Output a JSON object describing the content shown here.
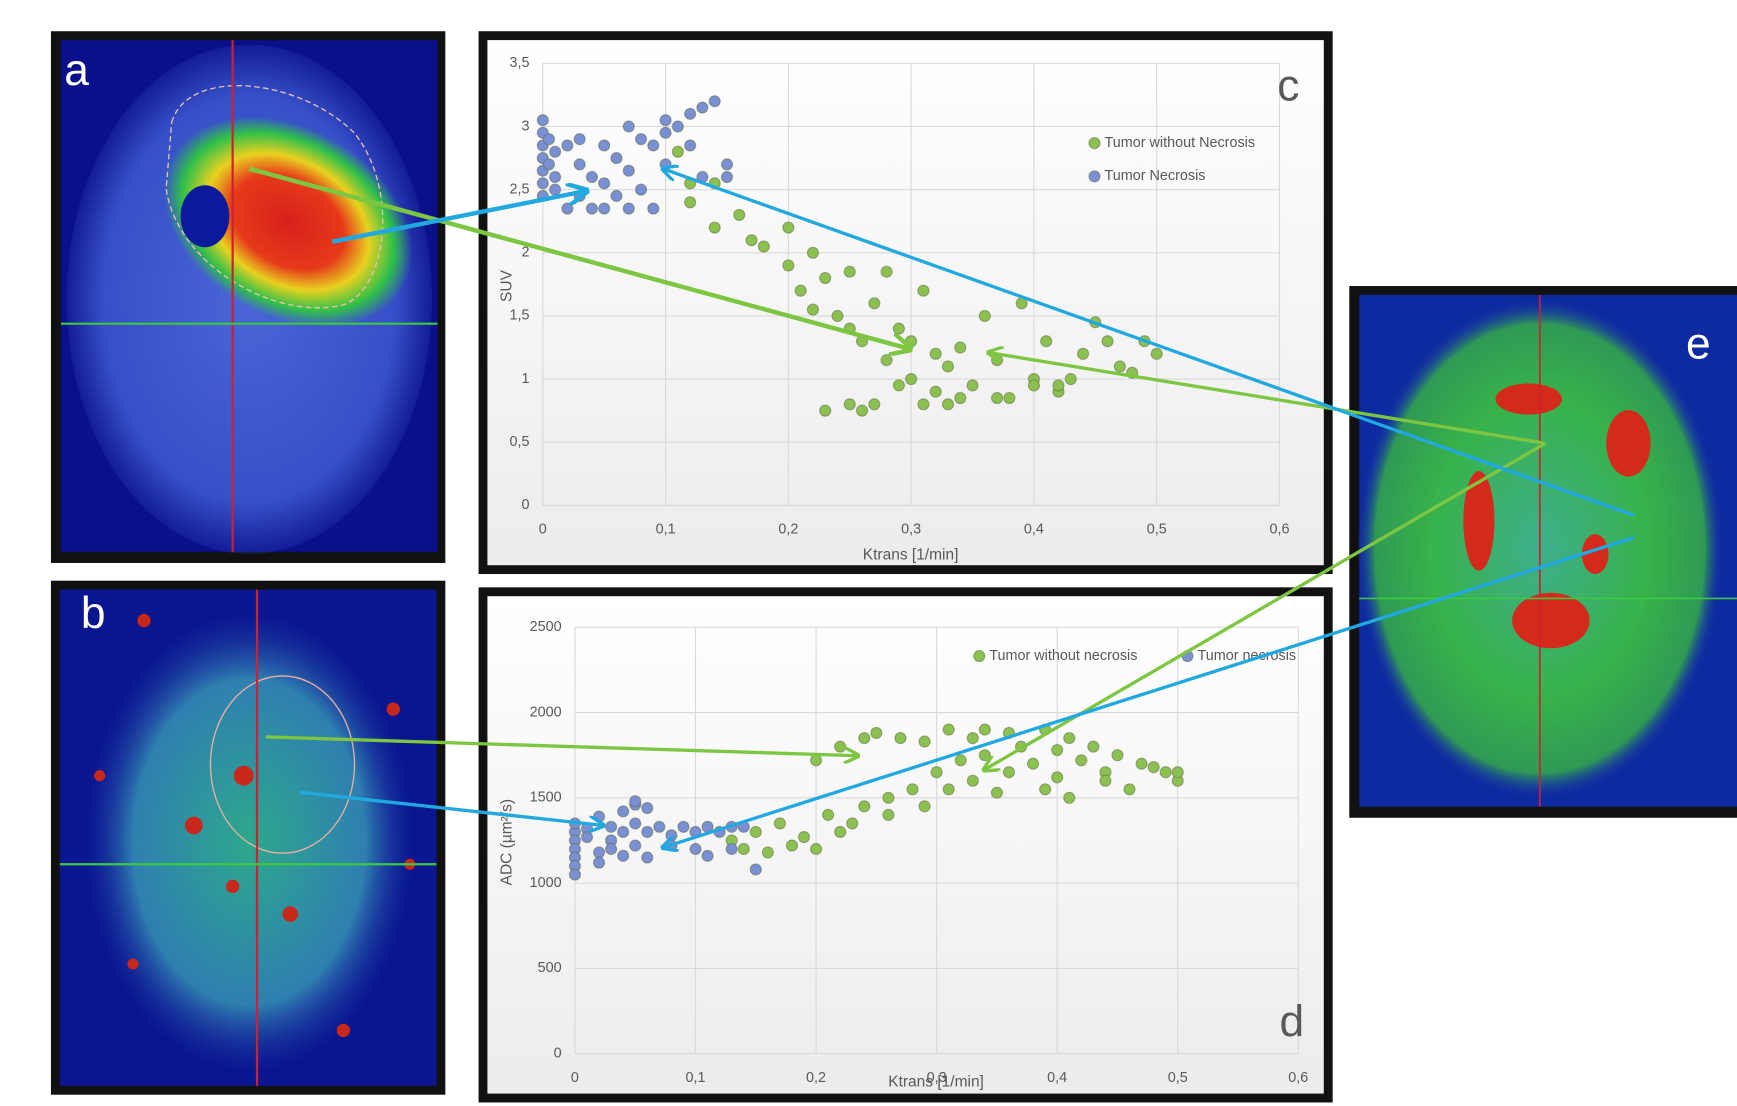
{
  "panel_labels": [
    "a",
    "b",
    "e"
  ],
  "chart_data": [
    {
      "type": "scatter",
      "panel_label": "c",
      "x_label": "Ktrans [1/min]",
      "y_label": "SUV",
      "xlim": [
        0,
        0.6
      ],
      "ylim": [
        0,
        3.5
      ],
      "grid": true,
      "legend": "top-right",
      "xticks": [
        0,
        {
          "value": 0.1,
          "label": "0,1"
        },
        {
          "value": 0.2,
          "label": "0,2"
        },
        {
          "value": 0.3,
          "label": "0,3"
        },
        {
          "value": 0.4,
          "label": "0,4"
        },
        {
          "value": 0.5,
          "label": "0,5"
        },
        {
          "value": 0.6,
          "label": "0,6"
        }
      ],
      "yticks": [
        0,
        {
          "value": 0.5,
          "label": "0,5"
        },
        1,
        {
          "value": 1.5,
          "label": "1,5"
        },
        2,
        {
          "value": 2.5,
          "label": "2,5"
        },
        3,
        {
          "value": 3.5,
          "label": "3,5"
        }
      ],
      "series": [
        {
          "name": "Tumor without Necrosis",
          "color": "#8cc152",
          "x": [
            0.11,
            0.12,
            0.12,
            0.14,
            0.14,
            0.16,
            0.17,
            0.18,
            0.2,
            0.2,
            0.21,
            0.22,
            0.22,
            0.23,
            0.24,
            0.25,
            0.25,
            0.26,
            0.27,
            0.28,
            0.28,
            0.29,
            0.3,
            0.3,
            0.31,
            0.32,
            0.32,
            0.33,
            0.34,
            0.35,
            0.36,
            0.37,
            0.38,
            0.39,
            0.4,
            0.41,
            0.42,
            0.43,
            0.44,
            0.45,
            0.46,
            0.47,
            0.48,
            0.49,
            0.5,
            0.23,
            0.25,
            0.27,
            0.29,
            0.31,
            0.34,
            0.37,
            0.4,
            0.42,
            0.33,
            0.26
          ],
          "values": [
            2.8,
            2.55,
            2.4,
            2.55,
            2.2,
            2.3,
            2.1,
            2.05,
            2.2,
            1.9,
            1.7,
            2.0,
            1.55,
            1.8,
            1.5,
            1.85,
            1.4,
            1.3,
            1.6,
            1.85,
            1.15,
            1.4,
            1.3,
            1.0,
            1.7,
            1.2,
            0.9,
            1.1,
            1.25,
            0.95,
            1.5,
            1.15,
            0.85,
            1.6,
            1.0,
            1.3,
            0.9,
            1.0,
            1.2,
            1.45,
            1.3,
            1.1,
            1.05,
            1.3,
            1.2,
            0.75,
            0.8,
            0.8,
            0.95,
            0.8,
            0.85,
            0.85,
            0.95,
            0.95,
            0.8,
            0.75
          ]
        },
        {
          "name": "Tumor Necrosis",
          "color": "#7b8fd4",
          "x": [
            0,
            0,
            0,
            0,
            0,
            0,
            0,
            0.005,
            0.005,
            0.01,
            0.01,
            0.01,
            0.02,
            0.02,
            0.03,
            0.03,
            0.03,
            0.04,
            0.04,
            0.05,
            0.05,
            0.05,
            0.06,
            0.06,
            0.07,
            0.07,
            0.07,
            0.08,
            0.08,
            0.09,
            0.09,
            0.1,
            0.1,
            0.1,
            0.11,
            0.12,
            0.13,
            0.14,
            0.12,
            0.15,
            0.15,
            0.13
          ],
          "values": [
            3.05,
            2.95,
            2.85,
            2.75,
            2.65,
            2.55,
            2.45,
            2.9,
            2.7,
            2.8,
            2.6,
            2.5,
            2.85,
            2.35,
            2.9,
            2.7,
            2.45,
            2.6,
            2.35,
            2.85,
            2.55,
            2.35,
            2.75,
            2.45,
            3.0,
            2.65,
            2.35,
            2.9,
            2.5,
            2.85,
            2.35,
            3.05,
            2.95,
            2.7,
            3.0,
            3.1,
            3.15,
            3.2,
            2.85,
            2.7,
            2.6,
            2.6
          ]
        }
      ]
    },
    {
      "type": "scatter",
      "panel_label": "d",
      "x_label": "Ktrans [1/min]",
      "y_label": "ADC (µm²/s)",
      "xlim": [
        0,
        0.6
      ],
      "ylim": [
        0,
        2500
      ],
      "grid": true,
      "legend": "top",
      "xticks": [
        0,
        {
          "value": 0.1,
          "label": "0,1"
        },
        {
          "value": 0.2,
          "label": "0,2"
        },
        {
          "value": 0.3,
          "label": "0,3"
        },
        {
          "value": 0.4,
          "label": "0,4"
        },
        {
          "value": 0.5,
          "label": "0,5"
        },
        {
          "value": 0.6,
          "label": "0,6"
        }
      ],
      "yticks": [
        0,
        500,
        1000,
        1500,
        2000,
        2500
      ],
      "series": [
        {
          "name": "Tumor without necrosis",
          "color": "#8cc152",
          "x": [
            0.13,
            0.14,
            0.15,
            0.16,
            0.17,
            0.18,
            0.19,
            0.2,
            0.2,
            0.21,
            0.22,
            0.22,
            0.23,
            0.24,
            0.24,
            0.25,
            0.26,
            0.26,
            0.27,
            0.28,
            0.29,
            0.29,
            0.3,
            0.31,
            0.31,
            0.32,
            0.33,
            0.33,
            0.34,
            0.35,
            0.36,
            0.36,
            0.37,
            0.38,
            0.39,
            0.39,
            0.4,
            0.4,
            0.41,
            0.41,
            0.42,
            0.43,
            0.44,
            0.45,
            0.46,
            0.47,
            0.48,
            0.49,
            0.5,
            0.5,
            0.44,
            0.34
          ],
          "values": [
            1250,
            1200,
            1300,
            1180,
            1350,
            1220,
            1270,
            1200,
            1720,
            1400,
            1300,
            1800,
            1350,
            1850,
            1450,
            1880,
            1500,
            1400,
            1850,
            1550,
            1830,
            1450,
            1650,
            1900,
            1550,
            1720,
            1850,
            1600,
            1750,
            1530,
            1880,
            1650,
            1800,
            1700,
            1900,
            1550,
            1780,
            1620,
            1850,
            1500,
            1720,
            1800,
            1650,
            1750,
            1550,
            1700,
            1680,
            1650,
            1600,
            1650,
            1600,
            1900
          ]
        },
        {
          "name": "Tumor necrosis",
          "color": "#7b8fd4",
          "x": [
            0,
            0,
            0,
            0,
            0,
            0,
            0,
            0.01,
            0.01,
            0.02,
            0.02,
            0.02,
            0.03,
            0.03,
            0.04,
            0.04,
            0.04,
            0.05,
            0.05,
            0.05,
            0.06,
            0.06,
            0.06,
            0.07,
            0.08,
            0.08,
            0.09,
            0.1,
            0.1,
            0.11,
            0.11,
            0.12,
            0.13,
            0.13,
            0.14,
            0.15,
            0.05,
            0.03
          ],
          "values": [
            1300,
            1250,
            1200,
            1150,
            1100,
            1050,
            1350,
            1320,
            1270,
            1390,
            1180,
            1120,
            1330,
            1250,
            1420,
            1300,
            1160,
            1460,
            1350,
            1220,
            1440,
            1300,
            1150,
            1330,
            1280,
            1220,
            1330,
            1300,
            1200,
            1330,
            1160,
            1300,
            1330,
            1200,
            1330,
            1080,
            1480,
            1200
          ]
        }
      ]
    }
  ]
}
